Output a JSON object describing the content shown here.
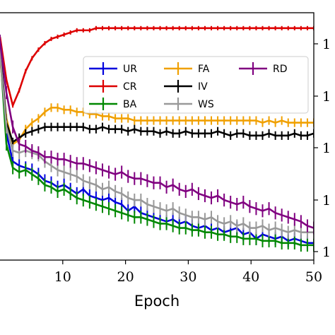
{
  "chart_data": {
    "type": "line",
    "xlabel": "Epoch",
    "ylabel": "",
    "xlim": [
      0,
      50
    ],
    "ylim": [
      0,
      1
    ],
    "x_ticks": [
      10,
      20,
      30,
      40,
      50
    ],
    "right_tick_labels": [
      "1",
      "1",
      "1",
      "1",
      "1"
    ],
    "grid": false,
    "legend": {
      "placement": "top-right",
      "columns": 3
    },
    "error_bars": true,
    "x": [
      1,
      2,
      3,
      4,
      5,
      6,
      7,
      8,
      9,
      10,
      11,
      12,
      13,
      14,
      15,
      16,
      17,
      18,
      19,
      20,
      21,
      22,
      23,
      24,
      25,
      26,
      27,
      28,
      29,
      30,
      31,
      32,
      33,
      34,
      35,
      36,
      37,
      38,
      39,
      40,
      41,
      42,
      43,
      44,
      45,
      46,
      47,
      48,
      49,
      50
    ],
    "series": [
      {
        "name": "UR",
        "color": "#0000dd",
        "values": [
          0.96,
          0.55,
          0.42,
          0.4,
          0.39,
          0.38,
          0.36,
          0.33,
          0.32,
          0.3,
          0.31,
          0.29,
          0.27,
          0.29,
          0.26,
          0.25,
          0.24,
          0.25,
          0.23,
          0.22,
          0.19,
          0.21,
          0.18,
          0.17,
          0.16,
          0.15,
          0.14,
          0.15,
          0.13,
          0.14,
          0.12,
          0.11,
          0.12,
          0.1,
          0.11,
          0.09,
          0.1,
          0.11,
          0.08,
          0.09,
          0.06,
          0.08,
          0.07,
          0.06,
          0.07,
          0.05,
          0.06,
          0.05,
          0.04,
          0.04
        ],
        "errors": [
          0.03,
          0.03,
          0.03,
          0.03,
          0.03,
          0.03,
          0.03,
          0.03,
          0.03,
          0.03,
          0.03,
          0.03,
          0.03,
          0.03,
          0.03,
          0.03,
          0.03,
          0.03,
          0.03,
          0.03,
          0.03,
          0.03,
          0.03,
          0.03,
          0.03,
          0.03,
          0.03,
          0.03,
          0.03,
          0.03,
          0.03,
          0.03,
          0.03,
          0.03,
          0.03,
          0.03,
          0.03,
          0.03,
          0.03,
          0.03,
          0.03,
          0.03,
          0.03,
          0.03,
          0.03,
          0.03,
          0.03,
          0.03,
          0.03,
          0.03
        ]
      },
      {
        "name": "CR",
        "color": "#dd0000",
        "values": [
          1.0,
          0.8,
          0.68,
          0.75,
          0.84,
          0.9,
          0.94,
          0.97,
          0.99,
          1.0,
          1.01,
          1.02,
          1.03,
          1.03,
          1.03,
          1.04,
          1.04,
          1.04,
          1.04,
          1.04,
          1.04,
          1.04,
          1.04,
          1.04,
          1.04,
          1.04,
          1.04,
          1.04,
          1.04,
          1.04,
          1.04,
          1.04,
          1.04,
          1.04,
          1.04,
          1.04,
          1.04,
          1.04,
          1.04,
          1.04,
          1.04,
          1.04,
          1.04,
          1.04,
          1.04,
          1.04,
          1.04,
          1.04,
          1.04,
          1.04
        ],
        "errors": [
          0.01,
          0.01,
          0.01,
          0.01,
          0.01,
          0.01,
          0.01,
          0.01,
          0.01,
          0.01,
          0.01,
          0.01,
          0.01,
          0.01,
          0.01,
          0.01,
          0.01,
          0.01,
          0.01,
          0.01,
          0.01,
          0.01,
          0.01,
          0.01,
          0.01,
          0.01,
          0.01,
          0.01,
          0.01,
          0.01,
          0.01,
          0.01,
          0.01,
          0.01,
          0.01,
          0.01,
          0.01,
          0.01,
          0.01,
          0.01,
          0.01,
          0.01,
          0.01,
          0.01,
          0.01,
          0.01,
          0.01,
          0.01,
          0.01,
          0.01
        ]
      },
      {
        "name": "BA",
        "color": "#008800",
        "values": [
          0.94,
          0.5,
          0.39,
          0.37,
          0.38,
          0.36,
          0.34,
          0.31,
          0.3,
          0.28,
          0.29,
          0.27,
          0.25,
          0.24,
          0.23,
          0.22,
          0.21,
          0.2,
          0.19,
          0.18,
          0.17,
          0.16,
          0.16,
          0.15,
          0.14,
          0.13,
          0.13,
          0.12,
          0.11,
          0.11,
          0.1,
          0.1,
          0.09,
          0.09,
          0.08,
          0.08,
          0.07,
          0.07,
          0.06,
          0.06,
          0.06,
          0.05,
          0.05,
          0.05,
          0.04,
          0.04,
          0.04,
          0.03,
          0.03,
          0.03
        ],
        "errors": [
          0.03,
          0.03,
          0.03,
          0.03,
          0.03,
          0.03,
          0.03,
          0.03,
          0.03,
          0.03,
          0.03,
          0.03,
          0.03,
          0.03,
          0.03,
          0.03,
          0.03,
          0.03,
          0.03,
          0.03,
          0.03,
          0.03,
          0.03,
          0.03,
          0.03,
          0.03,
          0.03,
          0.03,
          0.03,
          0.03,
          0.03,
          0.03,
          0.03,
          0.03,
          0.03,
          0.03,
          0.03,
          0.03,
          0.03,
          0.03,
          0.03,
          0.03,
          0.03,
          0.03,
          0.03,
          0.03,
          0.03,
          0.03,
          0.03,
          0.03
        ]
      },
      {
        "name": "FA",
        "color": "#f0a000",
        "values": [
          0.9,
          0.62,
          0.5,
          0.52,
          0.57,
          0.6,
          0.62,
          0.65,
          0.67,
          0.67,
          0.66,
          0.66,
          0.65,
          0.65,
          0.64,
          0.64,
          0.63,
          0.63,
          0.62,
          0.62,
          0.62,
          0.61,
          0.61,
          0.61,
          0.61,
          0.61,
          0.61,
          0.61,
          0.61,
          0.61,
          0.61,
          0.61,
          0.61,
          0.61,
          0.61,
          0.61,
          0.61,
          0.61,
          0.61,
          0.61,
          0.61,
          0.6,
          0.61,
          0.6,
          0.61,
          0.6,
          0.6,
          0.6,
          0.6,
          0.6
        ],
        "errors": [
          0.02,
          0.02,
          0.02,
          0.02,
          0.02,
          0.02,
          0.02,
          0.02,
          0.02,
          0.02,
          0.02,
          0.02,
          0.02,
          0.02,
          0.02,
          0.02,
          0.02,
          0.02,
          0.02,
          0.02,
          0.02,
          0.02,
          0.02,
          0.02,
          0.02,
          0.02,
          0.02,
          0.02,
          0.02,
          0.02,
          0.02,
          0.02,
          0.02,
          0.02,
          0.02,
          0.02,
          0.02,
          0.02,
          0.02,
          0.02,
          0.02,
          0.02,
          0.02,
          0.02,
          0.02,
          0.02,
          0.02,
          0.02,
          0.02,
          0.02
        ]
      },
      {
        "name": "IV",
        "color": "#000000",
        "values": [
          0.95,
          0.6,
          0.51,
          0.53,
          0.55,
          0.56,
          0.57,
          0.58,
          0.58,
          0.58,
          0.58,
          0.58,
          0.58,
          0.58,
          0.57,
          0.57,
          0.58,
          0.57,
          0.57,
          0.57,
          0.56,
          0.57,
          0.56,
          0.56,
          0.56,
          0.55,
          0.56,
          0.55,
          0.55,
          0.56,
          0.55,
          0.55,
          0.55,
          0.55,
          0.56,
          0.55,
          0.54,
          0.55,
          0.55,
          0.54,
          0.54,
          0.54,
          0.55,
          0.54,
          0.54,
          0.54,
          0.55,
          0.54,
          0.54,
          0.55
        ],
        "errors": [
          0.02,
          0.02,
          0.02,
          0.02,
          0.02,
          0.02,
          0.02,
          0.02,
          0.02,
          0.02,
          0.02,
          0.02,
          0.02,
          0.02,
          0.02,
          0.02,
          0.02,
          0.02,
          0.02,
          0.02,
          0.02,
          0.02,
          0.02,
          0.02,
          0.02,
          0.02,
          0.02,
          0.02,
          0.02,
          0.02,
          0.02,
          0.02,
          0.02,
          0.02,
          0.02,
          0.02,
          0.02,
          0.02,
          0.02,
          0.02,
          0.02,
          0.02,
          0.02,
          0.02,
          0.02,
          0.02,
          0.02,
          0.02,
          0.02,
          0.02
        ]
      },
      {
        "name": "WS",
        "color": "#999999",
        "values": [
          0.92,
          0.58,
          0.47,
          0.46,
          0.47,
          0.46,
          0.45,
          0.42,
          0.4,
          0.38,
          0.37,
          0.36,
          0.35,
          0.33,
          0.32,
          0.31,
          0.29,
          0.3,
          0.28,
          0.27,
          0.25,
          0.24,
          0.24,
          0.22,
          0.21,
          0.2,
          0.19,
          0.2,
          0.18,
          0.17,
          0.16,
          0.16,
          0.15,
          0.16,
          0.14,
          0.13,
          0.14,
          0.12,
          0.13,
          0.11,
          0.11,
          0.12,
          0.1,
          0.11,
          0.1,
          0.09,
          0.1,
          0.09,
          0.09,
          0.09
        ],
        "errors": [
          0.03,
          0.03,
          0.03,
          0.03,
          0.03,
          0.03,
          0.03,
          0.03,
          0.03,
          0.03,
          0.03,
          0.03,
          0.03,
          0.03,
          0.03,
          0.03,
          0.03,
          0.03,
          0.03,
          0.03,
          0.03,
          0.03,
          0.03,
          0.03,
          0.03,
          0.03,
          0.03,
          0.03,
          0.03,
          0.03,
          0.03,
          0.03,
          0.03,
          0.03,
          0.03,
          0.03,
          0.03,
          0.03,
          0.03,
          0.03,
          0.03,
          0.03,
          0.03,
          0.03,
          0.03,
          0.03,
          0.03,
          0.03,
          0.03,
          0.03
        ]
      },
      {
        "name": "RD",
        "color": "#800080",
        "values": [
          0.98,
          0.74,
          0.58,
          0.5,
          0.49,
          0.47,
          0.46,
          0.44,
          0.44,
          0.43,
          0.43,
          0.42,
          0.41,
          0.41,
          0.4,
          0.39,
          0.38,
          0.37,
          0.36,
          0.37,
          0.35,
          0.34,
          0.34,
          0.33,
          0.32,
          0.32,
          0.3,
          0.31,
          0.29,
          0.28,
          0.29,
          0.27,
          0.26,
          0.25,
          0.26,
          0.24,
          0.23,
          0.22,
          0.23,
          0.21,
          0.2,
          0.19,
          0.2,
          0.18,
          0.17,
          0.16,
          0.15,
          0.14,
          0.12,
          0.11
        ],
        "errors": [
          0.03,
          0.03,
          0.03,
          0.03,
          0.03,
          0.03,
          0.03,
          0.03,
          0.03,
          0.03,
          0.03,
          0.03,
          0.03,
          0.03,
          0.03,
          0.03,
          0.03,
          0.03,
          0.03,
          0.03,
          0.03,
          0.03,
          0.03,
          0.03,
          0.03,
          0.03,
          0.03,
          0.03,
          0.03,
          0.03,
          0.03,
          0.03,
          0.03,
          0.03,
          0.03,
          0.03,
          0.03,
          0.03,
          0.03,
          0.03,
          0.03,
          0.03,
          0.03,
          0.03,
          0.03,
          0.03,
          0.03,
          0.03,
          0.03,
          0.03
        ]
      }
    ]
  }
}
